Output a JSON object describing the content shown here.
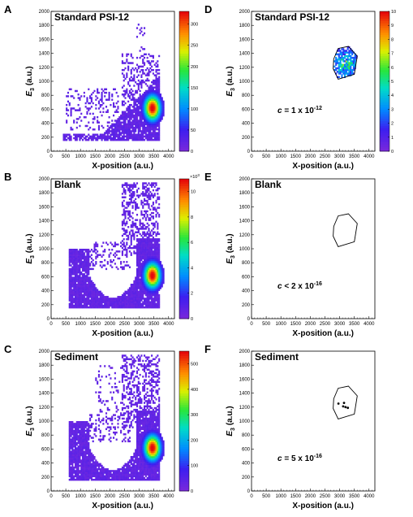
{
  "chart_data": [
    {
      "panel_label": "A",
      "type": "heatmap",
      "title": "Standard PSI-12",
      "xlabel": "X-position (a.u.)",
      "ylabel_base": "E",
      "ylabel_sub": "3",
      "ylabel_unit": " (a.u.)",
      "xlim": [
        0,
        4200
      ],
      "ylim": [
        0,
        2000
      ],
      "xticks": [
        0,
        500,
        1000,
        1500,
        2000,
        2500,
        3000,
        3500,
        4000
      ],
      "yticks": [
        0,
        200,
        400,
        600,
        800,
        1000,
        1200,
        1400,
        1600,
        1800,
        2000
      ],
      "colorbar": {
        "min": 0,
        "max": 330,
        "ticks": [
          0,
          50,
          100,
          150,
          200,
          250,
          300
        ],
        "exponent": ""
      },
      "distribution": "standard",
      "hotspot": {
        "x": 3450,
        "y": 620
      }
    },
    {
      "panel_label": "D",
      "type": "heatmap",
      "title": "Standard PSI-12",
      "xlabel": "X-position (a.u.)",
      "ylabel_base": "E",
      "ylabel_sub": "3",
      "ylabel_unit": " (a.u.)",
      "xlim": [
        0,
        4200
      ],
      "ylim": [
        0,
        2000
      ],
      "xticks": [
        0,
        500,
        1000,
        1500,
        2000,
        2500,
        3000,
        3500,
        4000
      ],
      "yticks": [
        0,
        200,
        400,
        600,
        800,
        1000,
        1200,
        1400,
        1600,
        1800,
        2000
      ],
      "colorbar": {
        "min": 0,
        "max": 10,
        "ticks": [
          0,
          1,
          2,
          3,
          4,
          5,
          6,
          7,
          8,
          9,
          10
        ],
        "exponent": ""
      },
      "distribution": "gated",
      "gate": [
        [
          2800,
          1320
        ],
        [
          2950,
          1470
        ],
        [
          3300,
          1500
        ],
        [
          3600,
          1360
        ],
        [
          3500,
          1100
        ],
        [
          2950,
          1030
        ],
        [
          2780,
          1180
        ]
      ],
      "annotation": {
        "c": "c",
        "text": " = 1 x 10",
        "exp": "-12"
      }
    },
    {
      "panel_label": "B",
      "type": "heatmap",
      "title": "Blank",
      "xlabel": "X-position (a.u.)",
      "ylabel_base": "E",
      "ylabel_sub": "3",
      "ylabel_unit": " (a.u.)",
      "xlim": [
        0,
        4200
      ],
      "ylim": [
        0,
        2000
      ],
      "xticks": [
        0,
        500,
        1000,
        1500,
        2000,
        2500,
        3000,
        3500,
        4000
      ],
      "yticks": [
        0,
        200,
        400,
        600,
        800,
        1000,
        1200,
        1400,
        1600,
        1800,
        2000
      ],
      "colorbar": {
        "min": 0,
        "max": 11,
        "ticks": [
          0,
          2,
          4,
          6,
          8,
          10
        ],
        "exponent": "3"
      },
      "distribution": "blank",
      "hotspot": {
        "x": 3450,
        "y": 620
      }
    },
    {
      "panel_label": "E",
      "type": "scatter",
      "title": "Blank",
      "xlabel": "X-position (a.u.)",
      "ylabel_base": "E",
      "ylabel_sub": "3",
      "ylabel_unit": " (a.u.)",
      "xlim": [
        0,
        4200
      ],
      "ylim": [
        0,
        2000
      ],
      "xticks": [
        0,
        500,
        1000,
        1500,
        2000,
        2500,
        3000,
        3500,
        4000
      ],
      "yticks": [
        0,
        200,
        400,
        600,
        800,
        1000,
        1200,
        1400,
        1600,
        1800,
        2000
      ],
      "gate": [
        [
          2800,
          1320
        ],
        [
          2950,
          1470
        ],
        [
          3300,
          1500
        ],
        [
          3600,
          1360
        ],
        [
          3500,
          1100
        ],
        [
          2950,
          1030
        ],
        [
          2780,
          1180
        ]
      ],
      "points": [],
      "annotation": {
        "c": "c",
        "text": " < 2 x 10",
        "exp": "-16"
      }
    },
    {
      "panel_label": "C",
      "type": "heatmap",
      "title": "Sediment",
      "xlabel": "X-position (a.u.)",
      "ylabel_base": "E",
      "ylabel_sub": "3",
      "ylabel_unit": " (a.u.)",
      "xlim": [
        0,
        4200
      ],
      "ylim": [
        0,
        2000
      ],
      "xticks": [
        0,
        500,
        1000,
        1500,
        2000,
        2500,
        3000,
        3500,
        4000
      ],
      "yticks": [
        0,
        200,
        400,
        600,
        800,
        1000,
        1200,
        1400,
        1600,
        1800,
        2000
      ],
      "colorbar": {
        "min": 0,
        "max": 550,
        "ticks": [
          0,
          100,
          200,
          300,
          400,
          500
        ],
        "exponent": ""
      },
      "distribution": "sediment",
      "hotspot": {
        "x": 3450,
        "y": 620
      }
    },
    {
      "panel_label": "F",
      "type": "scatter",
      "title": "Sediment",
      "xlabel": "X-position (a.u.)",
      "ylabel_base": "E",
      "ylabel_sub": "3",
      "ylabel_unit": " (a.u.)",
      "xlim": [
        0,
        4200
      ],
      "ylim": [
        0,
        2000
      ],
      "xticks": [
        0,
        500,
        1000,
        1500,
        2000,
        2500,
        3000,
        3500,
        4000
      ],
      "yticks": [
        0,
        200,
        400,
        600,
        800,
        1000,
        1200,
        1400,
        1600,
        1800,
        2000
      ],
      "gate": [
        [
          2800,
          1320
        ],
        [
          2950,
          1470
        ],
        [
          3300,
          1500
        ],
        [
          3600,
          1360
        ],
        [
          3500,
          1100
        ],
        [
          2950,
          1030
        ],
        [
          2780,
          1180
        ]
      ],
      "points": [
        [
          2960,
          1250
        ],
        [
          3150,
          1260
        ],
        [
          3200,
          1200
        ],
        [
          3280,
          1190
        ],
        [
          3120,
          1210
        ]
      ],
      "annotation": {
        "c": "c",
        "text": " = 5 x 10",
        "exp": "-16"
      }
    }
  ]
}
